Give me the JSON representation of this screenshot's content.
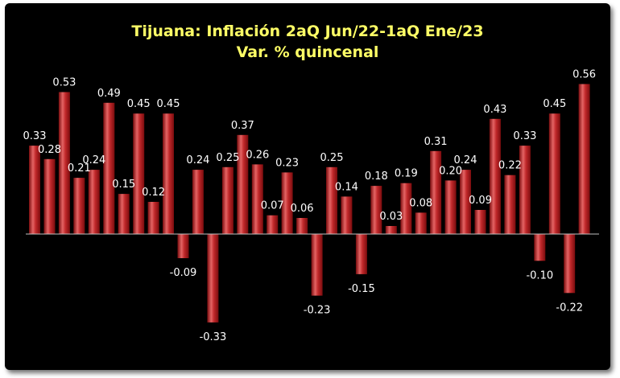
{
  "chart_data": {
    "type": "bar",
    "title": "Tijuana: Inflación 2aQ Jun/22-1aQ Ene/23",
    "subtitle": "Var. % quincenal",
    "values": [
      0.33,
      0.28,
      0.53,
      0.21,
      0.24,
      0.49,
      0.15,
      0.45,
      0.12,
      0.45,
      -0.09,
      0.24,
      -0.33,
      0.25,
      0.37,
      0.26,
      0.07,
      0.23,
      0.06,
      -0.23,
      0.25,
      0.14,
      -0.15,
      0.18,
      0.03,
      0.19,
      0.08,
      0.31,
      0.2,
      0.24,
      0.09,
      0.43,
      0.22,
      0.33,
      -0.1,
      0.45,
      -0.22,
      0.56
    ],
    "data_labels": [
      "0.33",
      "0.28",
      "0.53",
      "0.21",
      "0.24",
      "0.49",
      "0.15",
      "0.45",
      "0.12",
      "0.45",
      "-0.09",
      "0.24",
      "-0.33",
      "0.25",
      "0.37",
      "0.26",
      "0.07",
      "0.23",
      "0.06",
      "-0.23",
      "0.25",
      "0.14",
      "-0.15",
      "0.18",
      "0.03",
      "0.19",
      "0.08",
      "0.31",
      "0.20",
      "0.24",
      "0.09",
      "0.43",
      "0.22",
      "0.33",
      "-0.10",
      "0.45",
      "-0.22",
      "0.56"
    ],
    "xlabel": "",
    "ylabel": "",
    "ylim": [
      -0.36,
      0.6
    ],
    "grid": false,
    "legend": "none",
    "colors": {
      "background": "#000000",
      "title": "#ffff66",
      "labels": "#ffffff",
      "bar_light": "#e46464",
      "bar_mid": "#c0282a",
      "bar_dark": "#7a0c0e",
      "axis": "#bfbfbf"
    }
  }
}
